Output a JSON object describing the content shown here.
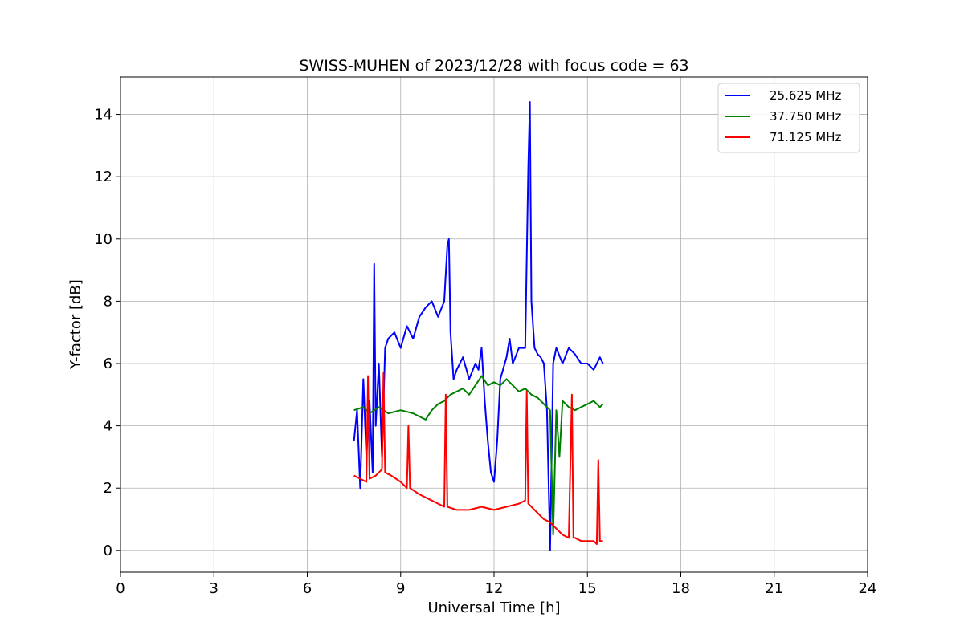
{
  "chart_data": {
    "type": "line",
    "title": "SWISS-MUHEN of 2023/12/28 with focus code = 63",
    "xlabel": "Universal Time [h]",
    "ylabel": "Y-factor [dB]",
    "xlim": [
      0,
      24
    ],
    "ylim": [
      -0.7,
      15.2
    ],
    "xticks": [
      0,
      3,
      6,
      9,
      12,
      15,
      18,
      21,
      24
    ],
    "yticks": [
      0,
      2,
      4,
      6,
      8,
      10,
      12,
      14
    ],
    "grid": true,
    "legend_position": "top-right",
    "series": [
      {
        "name": "25.625 MHz",
        "color": "#0000ff",
        "x": [
          7.5,
          7.6,
          7.7,
          7.8,
          7.9,
          8.0,
          8.1,
          8.15,
          8.2,
          8.3,
          8.4,
          8.5,
          8.6,
          8.8,
          9.0,
          9.2,
          9.4,
          9.6,
          9.8,
          10.0,
          10.2,
          10.4,
          10.5,
          10.55,
          10.6,
          10.7,
          10.8,
          11.0,
          11.2,
          11.4,
          11.5,
          11.6,
          11.7,
          11.8,
          11.9,
          12.0,
          12.1,
          12.2,
          12.4,
          12.5,
          12.6,
          12.8,
          13.0,
          13.1,
          13.15,
          13.2,
          13.3,
          13.4,
          13.5,
          13.6,
          13.7,
          13.8,
          13.9,
          14.0,
          14.2,
          14.4,
          14.6,
          14.8,
          15.0,
          15.2,
          15.4,
          15.5
        ],
        "y": [
          3.5,
          4.5,
          2.0,
          5.5,
          3.0,
          4.8,
          2.5,
          9.2,
          4.0,
          6.0,
          3.0,
          6.5,
          6.8,
          7.0,
          6.5,
          7.2,
          6.8,
          7.5,
          7.8,
          8.0,
          7.5,
          8.0,
          9.8,
          10.0,
          7.0,
          5.5,
          5.8,
          6.2,
          5.5,
          6.0,
          5.8,
          6.5,
          4.8,
          3.5,
          2.5,
          2.2,
          3.5,
          5.5,
          6.2,
          6.8,
          6.0,
          6.5,
          6.5,
          12.3,
          14.4,
          8.0,
          6.5,
          6.3,
          6.2,
          6.0,
          4.5,
          0.0,
          6.0,
          6.5,
          6.0,
          6.5,
          6.3,
          6.0,
          6.0,
          5.8,
          6.2,
          6.0
        ]
      },
      {
        "name": "37.750 MHz",
        "color": "#008000",
        "x": [
          7.5,
          7.8,
          8.0,
          8.3,
          8.6,
          9.0,
          9.4,
          9.8,
          10.0,
          10.2,
          10.4,
          10.6,
          10.8,
          11.0,
          11.2,
          11.4,
          11.6,
          11.8,
          12.0,
          12.2,
          12.4,
          12.6,
          12.8,
          13.0,
          13.2,
          13.4,
          13.6,
          13.8,
          13.9,
          14.0,
          14.1,
          14.2,
          14.4,
          14.6,
          14.8,
          15.0,
          15.2,
          15.4,
          15.5
        ],
        "y": [
          4.5,
          4.6,
          4.4,
          4.6,
          4.4,
          4.5,
          4.4,
          4.2,
          4.5,
          4.7,
          4.8,
          5.0,
          5.1,
          5.2,
          5.0,
          5.3,
          5.6,
          5.3,
          5.4,
          5.3,
          5.5,
          5.3,
          5.1,
          5.2,
          5.0,
          4.9,
          4.7,
          4.5,
          0.5,
          4.5,
          3.0,
          4.8,
          4.6,
          4.5,
          4.6,
          4.7,
          4.8,
          4.6,
          4.7
        ]
      },
      {
        "name": "71.125 MHz",
        "color": "#ff0000",
        "x": [
          7.5,
          7.7,
          7.9,
          7.95,
          8.0,
          8.2,
          8.4,
          8.45,
          8.5,
          8.7,
          9.0,
          9.2,
          9.25,
          9.3,
          9.6,
          10.0,
          10.4,
          10.45,
          10.5,
          10.8,
          11.2,
          11.6,
          12.0,
          12.4,
          12.8,
          13.0,
          13.05,
          13.1,
          13.3,
          13.6,
          13.8,
          14.0,
          14.2,
          14.4,
          14.5,
          14.55,
          14.6,
          14.8,
          15.0,
          15.2,
          15.3,
          15.35,
          15.4,
          15.5
        ],
        "y": [
          2.4,
          2.3,
          2.2,
          5.6,
          2.3,
          2.4,
          2.6,
          5.7,
          2.5,
          2.4,
          2.2,
          2.0,
          4.0,
          2.0,
          1.8,
          1.6,
          1.4,
          5.0,
          1.4,
          1.3,
          1.3,
          1.4,
          1.3,
          1.4,
          1.5,
          1.6,
          5.1,
          1.5,
          1.3,
          1.0,
          0.9,
          0.7,
          0.5,
          0.4,
          5.0,
          0.4,
          0.4,
          0.3,
          0.3,
          0.3,
          0.2,
          2.9,
          0.3,
          0.3
        ]
      }
    ]
  }
}
